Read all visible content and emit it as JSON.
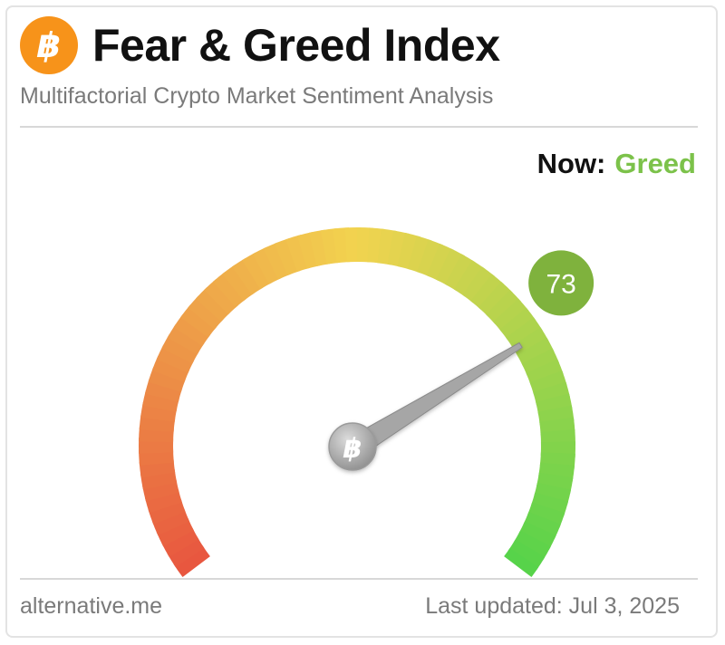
{
  "header": {
    "logo_icon": "bitcoin-icon",
    "logo_glyph": "฿",
    "title": "Fear & Greed Index",
    "subtitle": "Multifactorial Crypto Market Sentiment Analysis"
  },
  "status": {
    "now_label": "Now:",
    "now_value": "Greed",
    "value_color": "#7cc24a"
  },
  "gauge": {
    "value": 73,
    "value_text": "73",
    "min": 0,
    "max": 100,
    "badge_color": "#7fb23d",
    "center_glyph": "฿",
    "colors": {
      "fear": "#e8553f",
      "neutral": "#f2d34f",
      "greed": "#56d34a"
    }
  },
  "footer": {
    "source": "alternative.me",
    "updated": "Last updated: Jul 3, 2025"
  }
}
